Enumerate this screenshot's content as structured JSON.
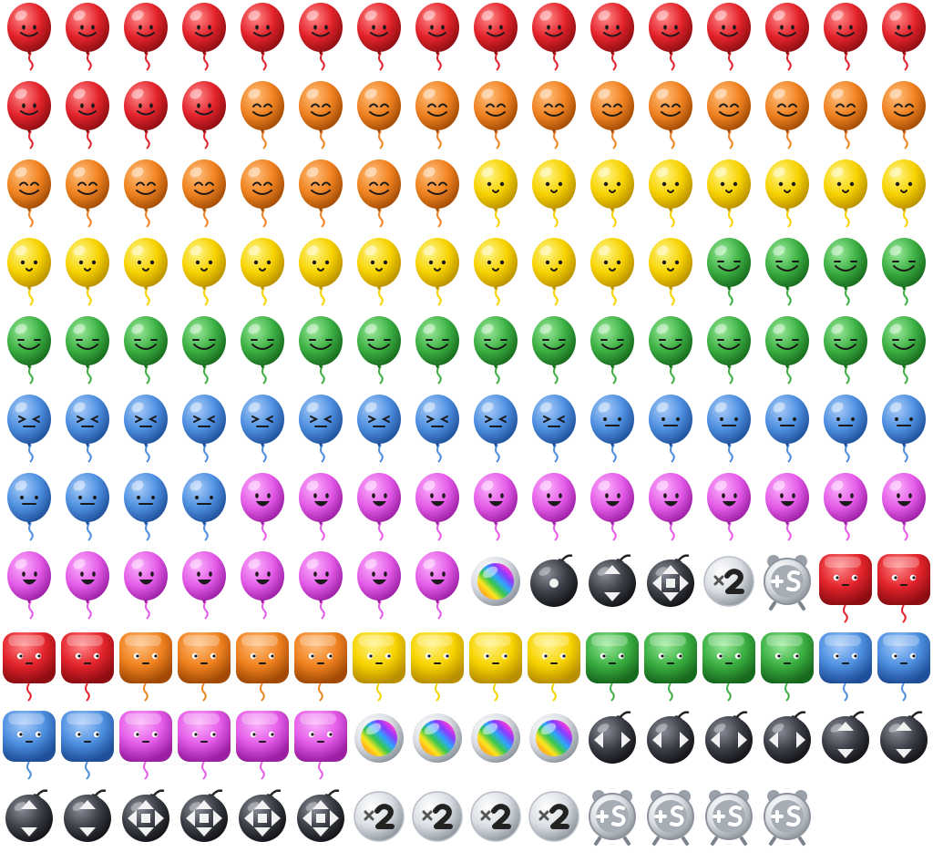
{
  "sheet": {
    "columns": 16,
    "colors": {
      "red": {
        "base": "#e3232b",
        "light": "#ff8a8a",
        "dark": "#8e0d12"
      },
      "orange": {
        "base": "#f08220",
        "light": "#ffc080",
        "dark": "#a24a05"
      },
      "yellow": {
        "base": "#f7d300",
        "light": "#fff48a",
        "dark": "#b88f00"
      },
      "green": {
        "base": "#3cb043",
        "light": "#9be99b",
        "dark": "#17691d"
      },
      "blue": {
        "base": "#4d8fe0",
        "light": "#a9cdfa",
        "dark": "#1f4f99"
      },
      "pink": {
        "base": "#e45ce8",
        "light": "#fab2fb",
        "dark": "#9b1ea3"
      },
      "bomb": {
        "base": "#3a3d45",
        "light": "#8a8e98",
        "dark": "#111216"
      },
      "silver": {
        "base": "#d9dde3",
        "light": "#ffffff",
        "dark": "#8c939c"
      }
    },
    "rows": [
      [
        [
          "balloon",
          "red",
          "smile",
          16
        ]
      ],
      [
        [
          "balloon",
          "red",
          "smile",
          4
        ],
        [
          "balloon",
          "orange",
          "happy",
          12
        ]
      ],
      [
        [
          "balloon",
          "orange",
          "happy",
          8
        ],
        [
          "balloon",
          "yellow",
          "dots",
          8
        ]
      ],
      [
        [
          "balloon",
          "yellow",
          "dots",
          12
        ],
        [
          "balloon",
          "green",
          "grin",
          4
        ]
      ],
      [
        [
          "balloon",
          "green",
          "grin",
          16
        ]
      ],
      [
        [
          "balloon",
          "blue",
          "squint",
          10
        ],
        [
          "balloon",
          "blue",
          "flat",
          6
        ]
      ],
      [
        [
          "balloon",
          "blue",
          "flat",
          4
        ],
        [
          "balloon",
          "pink",
          "open",
          12
        ]
      ],
      [
        [
          "balloon",
          "pink",
          "open",
          8
        ],
        [
          "rainbow",
          "none",
          "none",
          1
        ],
        [
          "bomb",
          "dot",
          "none",
          1
        ],
        [
          "bomb",
          "updown",
          "none",
          1
        ],
        [
          "bomb",
          "all",
          "none",
          1
        ],
        [
          "x2",
          "none",
          "none",
          1
        ],
        [
          "clock",
          "none",
          "none",
          1
        ],
        [
          "block",
          "red",
          "face",
          2
        ]
      ],
      [
        [
          "block",
          "red",
          "face",
          2
        ],
        [
          "block",
          "orange",
          "face",
          4
        ],
        [
          "block",
          "yellow",
          "face",
          4
        ],
        [
          "block",
          "green",
          "face",
          4
        ],
        [
          "block",
          "blue",
          "face",
          2
        ]
      ],
      [
        [
          "block",
          "blue",
          "face",
          2
        ],
        [
          "block",
          "pink",
          "face",
          4
        ],
        [
          "rainbow",
          "none",
          "none",
          4
        ],
        [
          "bomb",
          "side",
          "none",
          4
        ],
        [
          "bomb",
          "updown",
          "none",
          2
        ]
      ],
      [
        [
          "bomb",
          "updown",
          "none",
          2
        ],
        [
          "bomb",
          "all",
          "none",
          4
        ],
        [
          "x2",
          "none",
          "none",
          4
        ],
        [
          "clock",
          "none",
          "none",
          4
        ]
      ]
    ]
  }
}
